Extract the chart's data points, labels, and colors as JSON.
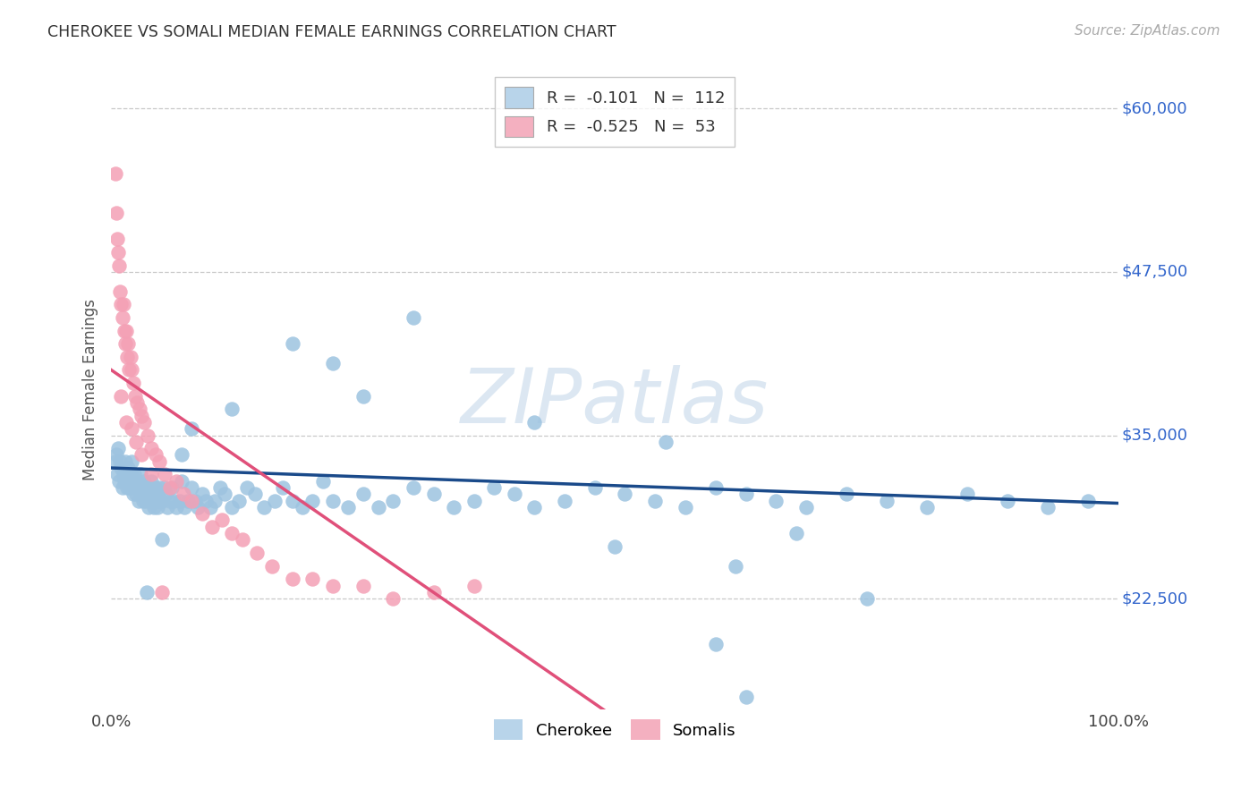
{
  "title": "CHEROKEE VS SOMALI MEDIAN FEMALE EARNINGS CORRELATION CHART",
  "source": "Source: ZipAtlas.com",
  "ylabel": "Median Female Earnings",
  "ytick_vals": [
    22500,
    35000,
    47500,
    60000
  ],
  "ytick_labels": [
    "$22,500",
    "$35,000",
    "$47,500",
    "$60,000"
  ],
  "xmin": 0.0,
  "xmax": 1.0,
  "ymin": 14000,
  "ymax": 63000,
  "watermark": "ZIPatlas",
  "cherokee_color": "#9dc3e0",
  "somali_color": "#f4a0b5",
  "cherokee_line_color": "#1a4a8a",
  "somali_line_color": "#e0507a",
  "background_color": "#ffffff",
  "grid_color": "#c8c8c8",
  "R_cherokee": -0.101,
  "N_cherokee": 112,
  "R_somali": -0.525,
  "N_somali": 53,
  "cherokee_x": [
    0.004,
    0.005,
    0.006,
    0.007,
    0.008,
    0.009,
    0.01,
    0.011,
    0.012,
    0.013,
    0.014,
    0.015,
    0.016,
    0.017,
    0.018,
    0.019,
    0.02,
    0.021,
    0.022,
    0.023,
    0.024,
    0.025,
    0.026,
    0.027,
    0.028,
    0.029,
    0.03,
    0.031,
    0.032,
    0.033,
    0.034,
    0.035,
    0.036,
    0.037,
    0.038,
    0.039,
    0.04,
    0.041,
    0.042,
    0.043,
    0.044,
    0.045,
    0.046,
    0.047,
    0.048,
    0.05,
    0.052,
    0.054,
    0.056,
    0.058,
    0.06,
    0.062,
    0.065,
    0.068,
    0.07,
    0.073,
    0.076,
    0.08,
    0.083,
    0.086,
    0.09,
    0.094,
    0.098,
    0.103,
    0.108,
    0.113,
    0.12,
    0.127,
    0.135,
    0.143,
    0.152,
    0.162,
    0.17,
    0.18,
    0.19,
    0.2,
    0.21,
    0.22,
    0.235,
    0.25,
    0.265,
    0.28,
    0.3,
    0.32,
    0.34,
    0.36,
    0.38,
    0.4,
    0.42,
    0.45,
    0.48,
    0.51,
    0.54,
    0.57,
    0.6,
    0.63,
    0.66,
    0.69,
    0.73,
    0.77,
    0.81,
    0.85,
    0.89,
    0.93,
    0.97,
    0.3,
    0.25,
    0.18,
    0.12,
    0.08,
    0.05,
    0.035
  ],
  "cherokee_y": [
    33000,
    33500,
    32000,
    34000,
    31500,
    33000,
    32500,
    31000,
    32000,
    31500,
    33000,
    32000,
    31000,
    32500,
    31000,
    32000,
    33000,
    31500,
    30500,
    32000,
    31000,
    30500,
    31500,
    30000,
    31000,
    32000,
    30500,
    31000,
    30000,
    31500,
    30000,
    31000,
    30500,
    29500,
    31000,
    30000,
    31500,
    30000,
    29500,
    31000,
    30000,
    30500,
    29500,
    30000,
    31000,
    30000,
    31000,
    30500,
    29500,
    30000,
    31000,
    30000,
    29500,
    30000,
    31500,
    29500,
    30000,
    31000,
    30000,
    29500,
    30500,
    30000,
    29500,
    30000,
    31000,
    30500,
    29500,
    30000,
    31000,
    30500,
    29500,
    30000,
    31000,
    30000,
    29500,
    30000,
    31500,
    30000,
    29500,
    30500,
    29500,
    30000,
    31000,
    30500,
    29500,
    30000,
    31000,
    30500,
    29500,
    30000,
    31000,
    30500,
    30000,
    29500,
    31000,
    30500,
    30000,
    29500,
    30500,
    30000,
    29500,
    30500,
    30000,
    29500,
    30000,
    44000,
    38000,
    42000,
    37000,
    35500,
    27000,
    23000
  ],
  "cherokee_y_extra": [
    33500,
    40500,
    36000,
    34500,
    27500,
    22500,
    25000,
    26500,
    19000,
    15000
  ],
  "cherokee_x_extra": [
    0.07,
    0.22,
    0.42,
    0.55,
    0.68,
    0.75,
    0.62,
    0.5,
    0.6,
    0.63
  ],
  "somali_x": [
    0.004,
    0.005,
    0.006,
    0.007,
    0.008,
    0.009,
    0.01,
    0.011,
    0.012,
    0.013,
    0.014,
    0.015,
    0.016,
    0.017,
    0.018,
    0.019,
    0.02,
    0.022,
    0.024,
    0.026,
    0.028,
    0.03,
    0.033,
    0.036,
    0.04,
    0.044,
    0.048,
    0.053,
    0.058,
    0.065,
    0.072,
    0.08,
    0.09,
    0.1,
    0.11,
    0.12,
    0.13,
    0.145,
    0.16,
    0.18,
    0.2,
    0.22,
    0.25,
    0.28,
    0.32,
    0.36,
    0.01,
    0.015,
    0.02,
    0.025,
    0.03,
    0.04,
    0.05
  ],
  "somali_y": [
    55000,
    52000,
    50000,
    49000,
    48000,
    46000,
    45000,
    44000,
    45000,
    43000,
    42000,
    43000,
    41000,
    42000,
    40000,
    41000,
    40000,
    39000,
    38000,
    37500,
    37000,
    36500,
    36000,
    35000,
    34000,
    33500,
    33000,
    32000,
    31000,
    31500,
    30500,
    30000,
    29000,
    28000,
    28500,
    27500,
    27000,
    26000,
    25000,
    24000,
    24000,
    23500,
    23500,
    22500,
    23000,
    23500,
    38000,
    36000,
    35500,
    34500,
    33500,
    32000,
    23000
  ]
}
